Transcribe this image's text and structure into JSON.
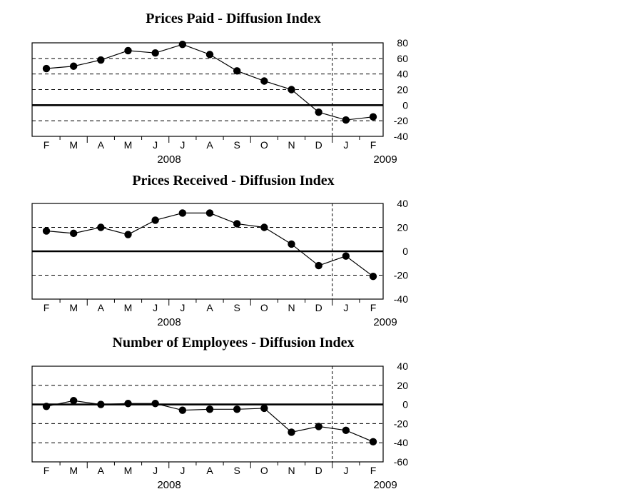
{
  "page": {
    "background_color": "#ffffff",
    "ink_color": "#000000"
  },
  "chart_data": [
    {
      "type": "line",
      "title": "Prices Paid - Diffusion Index",
      "x_labels": [
        "F",
        "M",
        "A",
        "M",
        "J",
        "J",
        "A",
        "S",
        "O",
        "N",
        "D",
        "J",
        "F"
      ],
      "year_labels": [
        "2008",
        "2009"
      ],
      "values": [
        47,
        50,
        58,
        70,
        67,
        78,
        65,
        44,
        31,
        20,
        -9,
        -19,
        -15
      ],
      "ylim": [
        -40,
        80
      ],
      "yticks": [
        80,
        60,
        40,
        20,
        0,
        -20,
        -40
      ],
      "zero_line": true,
      "grid": "dashed-horizontal",
      "yaxis_side": "right",
      "legend": "none",
      "marker": "filled-circle",
      "line_color": "#000000",
      "divider_after_index": 10
    },
    {
      "type": "line",
      "title": "Prices Received - Diffusion Index",
      "x_labels": [
        "F",
        "M",
        "A",
        "M",
        "J",
        "J",
        "A",
        "S",
        "O",
        "N",
        "D",
        "J",
        "F"
      ],
      "year_labels": [
        "2008",
        "2009"
      ],
      "values": [
        17,
        15,
        20,
        14,
        26,
        32,
        32,
        23,
        20,
        6,
        -12,
        -4,
        -21
      ],
      "ylim": [
        -40,
        40
      ],
      "yticks": [
        40,
        20,
        0,
        -20,
        -40
      ],
      "zero_line": true,
      "grid": "dashed-horizontal",
      "yaxis_side": "right",
      "legend": "none",
      "marker": "filled-circle",
      "line_color": "#000000",
      "divider_after_index": 10
    },
    {
      "type": "line",
      "title": "Number of Employees - Diffusion Index",
      "x_labels": [
        "F",
        "M",
        "A",
        "M",
        "J",
        "J",
        "A",
        "S",
        "O",
        "N",
        "D",
        "J",
        "F"
      ],
      "year_labels": [
        "2008",
        "2009"
      ],
      "values": [
        -2,
        4,
        0,
        1,
        1,
        -6,
        -5,
        -5,
        -4,
        -29,
        -23,
        -27,
        -39
      ],
      "ylim": [
        -60,
        40
      ],
      "yticks": [
        40,
        20,
        0,
        -20,
        -40,
        -60
      ],
      "zero_line": true,
      "grid": "dashed-horizontal",
      "yaxis_side": "right",
      "legend": "none",
      "marker": "filled-circle",
      "line_color": "#000000",
      "divider_after_index": 10
    }
  ]
}
